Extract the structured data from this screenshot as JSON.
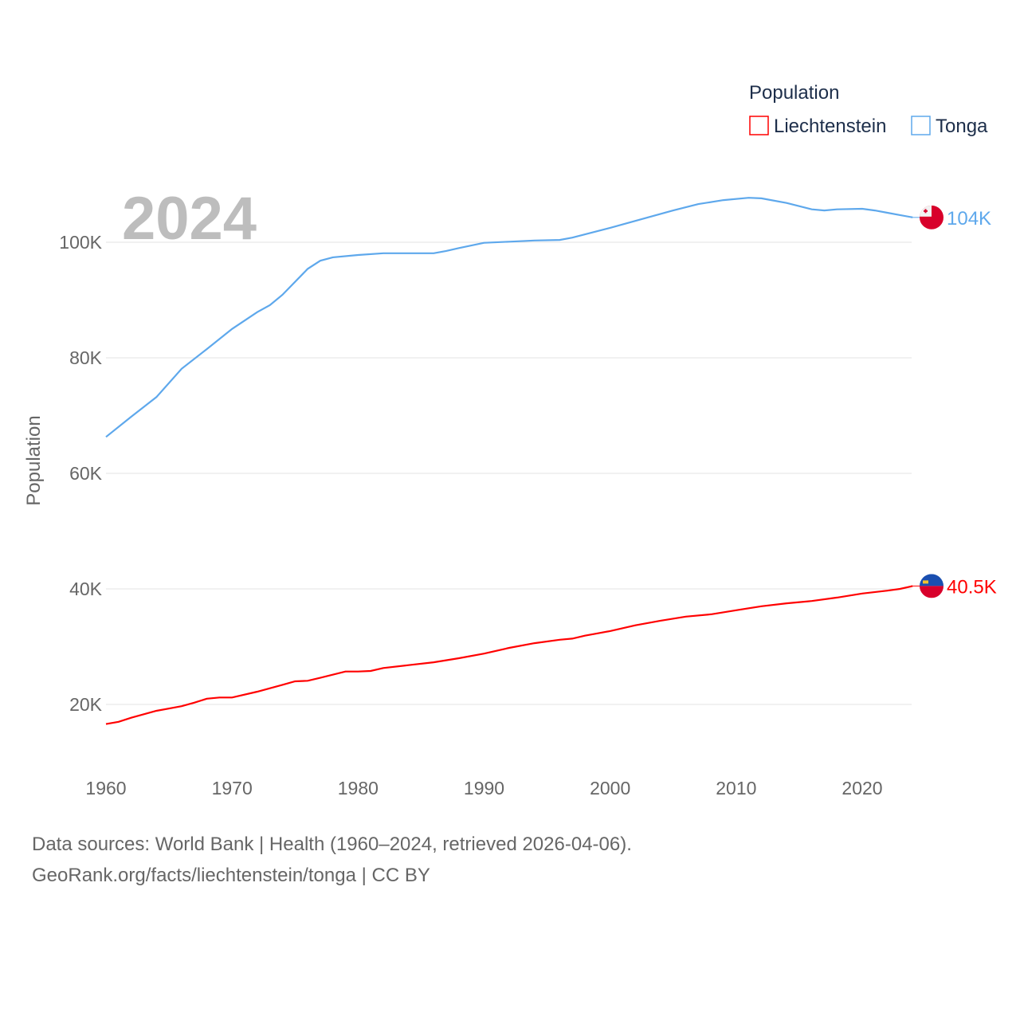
{
  "chart_data": {
    "type": "line",
    "title": "",
    "year_label": "2024",
    "xlabel": "",
    "ylabel": "Population",
    "xlim": [
      1960,
      2024
    ],
    "ylim": [
      10000,
      112000
    ],
    "x_ticks": [
      1960,
      1970,
      1980,
      1990,
      2000,
      2010,
      2020
    ],
    "x_tick_labels": [
      "1960",
      "1970",
      "1980",
      "1990",
      "2000",
      "2010",
      "2020"
    ],
    "y_ticks": [
      20000,
      40000,
      60000,
      80000,
      100000
    ],
    "y_tick_labels": [
      "20K",
      "40K",
      "60K",
      "80K",
      "100K"
    ],
    "grid": true,
    "legend": {
      "title": "Population",
      "placement": "top-right"
    },
    "series": [
      {
        "name": "Liechtenstein",
        "color": "#ff0000",
        "end_label": "40.5K",
        "flag": "liechtenstein-flag",
        "points": [
          [
            1960,
            16600
          ],
          [
            1961,
            17000
          ],
          [
            1962,
            17700
          ],
          [
            1964,
            18900
          ],
          [
            1966,
            19700
          ],
          [
            1967,
            20300
          ],
          [
            1968,
            21000
          ],
          [
            1969,
            21200
          ],
          [
            1970,
            21200
          ],
          [
            1972,
            22200
          ],
          [
            1974,
            23400
          ],
          [
            1975,
            24000
          ],
          [
            1976,
            24100
          ],
          [
            1977,
            24600
          ],
          [
            1979,
            25700
          ],
          [
            1980,
            25700
          ],
          [
            1981,
            25800
          ],
          [
            1982,
            26300
          ],
          [
            1984,
            26800
          ],
          [
            1986,
            27300
          ],
          [
            1988,
            28000
          ],
          [
            1990,
            28800
          ],
          [
            1992,
            29800
          ],
          [
            1994,
            30600
          ],
          [
            1996,
            31200
          ],
          [
            1997,
            31400
          ],
          [
            1998,
            31900
          ],
          [
            1999,
            32300
          ],
          [
            2000,
            32700
          ],
          [
            2002,
            33700
          ],
          [
            2004,
            34500
          ],
          [
            2006,
            35200
          ],
          [
            2008,
            35600
          ],
          [
            2010,
            36300
          ],
          [
            2012,
            37000
          ],
          [
            2014,
            37500
          ],
          [
            2016,
            37900
          ],
          [
            2018,
            38500
          ],
          [
            2020,
            39200
          ],
          [
            2022,
            39700
          ],
          [
            2023,
            40000
          ],
          [
            2024,
            40500
          ]
        ]
      },
      {
        "name": "Tonga",
        "color": "#5ea8ec",
        "end_label": "104K",
        "flag": "tonga-flag",
        "points": [
          [
            1960,
            66300
          ],
          [
            1962,
            69800
          ],
          [
            1964,
            73200
          ],
          [
            1966,
            78100
          ],
          [
            1968,
            81500
          ],
          [
            1970,
            85000
          ],
          [
            1972,
            87900
          ],
          [
            1973,
            89100
          ],
          [
            1974,
            90900
          ],
          [
            1976,
            95400
          ],
          [
            1977,
            96800
          ],
          [
            1978,
            97400
          ],
          [
            1980,
            97800
          ],
          [
            1982,
            98100
          ],
          [
            1986,
            98100
          ],
          [
            1987,
            98500
          ],
          [
            1988,
            99000
          ],
          [
            1990,
            99900
          ],
          [
            1992,
            100100
          ],
          [
            1994,
            100300
          ],
          [
            1996,
            100400
          ],
          [
            1997,
            100800
          ],
          [
            2000,
            102500
          ],
          [
            2003,
            104300
          ],
          [
            2005,
            105500
          ],
          [
            2007,
            106600
          ],
          [
            2009,
            107300
          ],
          [
            2011,
            107700
          ],
          [
            2012,
            107600
          ],
          [
            2014,
            106800
          ],
          [
            2016,
            105700
          ],
          [
            2017,
            105500
          ],
          [
            2018,
            105700
          ],
          [
            2020,
            105800
          ],
          [
            2021,
            105500
          ],
          [
            2022,
            105100
          ],
          [
            2023,
            104700
          ],
          [
            2024,
            104300
          ]
        ]
      }
    ]
  },
  "footer": {
    "sources": "Data sources: World Bank | Health (1960–2024, retrieved 2026-04-06).",
    "credit": "GeoRank.org/facts/liechtenstein/tonga | CC BY"
  }
}
